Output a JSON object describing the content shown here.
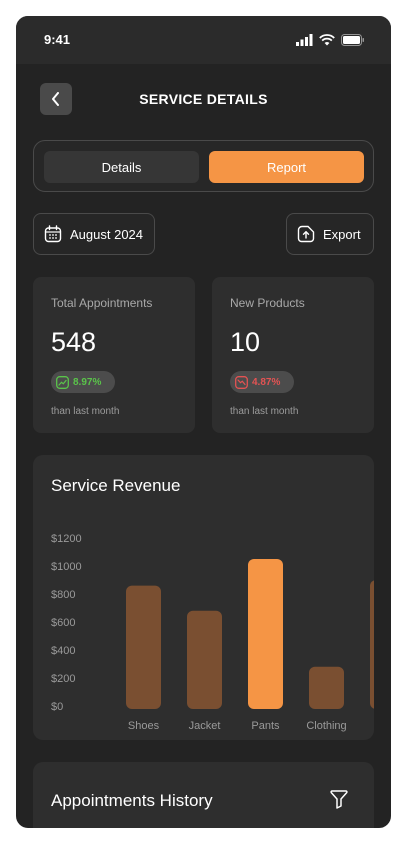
{
  "status": {
    "time": "9:41"
  },
  "header": {
    "title": "SERVICE DETAILS"
  },
  "tabs": [
    {
      "label": "Details"
    },
    {
      "label": "Report"
    }
  ],
  "toolbar": {
    "date_label": "August 2024",
    "export_label": "Export"
  },
  "stats": [
    {
      "label": "Total Appointments",
      "value": "548",
      "change": "8.97%",
      "direction": "up",
      "note": "than last month"
    },
    {
      "label": "New Products",
      "value": "10",
      "change": "4.87%",
      "direction": "down",
      "note": "than last month"
    }
  ],
  "chart_data": {
    "type": "bar",
    "title": "Service Revenue",
    "categories": [
      "Shoes",
      "Jacket",
      "Pants",
      "Clothing"
    ],
    "values": [
      860,
      680,
      1050,
      280
    ],
    "highlighted": "Pants",
    "ylim": [
      0,
      1200
    ],
    "yticks": [
      "$1200",
      "$1000",
      "$800",
      "$600",
      "$400",
      "$200",
      "$0"
    ],
    "colors": {
      "bar": "#7a4f31",
      "highlight": "#f59545"
    }
  },
  "history": {
    "title": "Appointments History"
  }
}
